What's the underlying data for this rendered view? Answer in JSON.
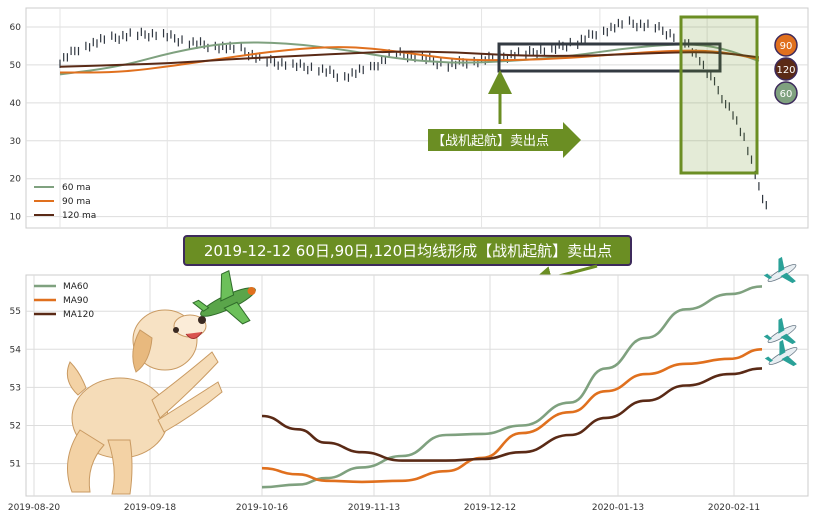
{
  "chart_data": [
    {
      "type": "line",
      "panel": "top",
      "title": "",
      "xlabel": "",
      "ylabel": "",
      "x_range": [
        "2019-08-20",
        "2020-02-28"
      ],
      "ylim": [
        7,
        65
      ],
      "y_ticks": [
        10,
        20,
        30,
        40,
        50,
        60
      ],
      "grid": true,
      "legend_position": "bottom-left",
      "series": [
        {
          "name": "60 ma",
          "color": "#7fa17f",
          "x": [
            "2019-08-20",
            "2019-09-05",
            "2019-09-20",
            "2019-10-05",
            "2019-10-20",
            "2019-11-05",
            "2019-11-20",
            "2019-12-05",
            "2019-12-20",
            "2020-01-05",
            "2020-01-20",
            "2020-02-05",
            "2020-02-15",
            "2020-02-25"
          ],
          "values": [
            47.5,
            49.5,
            53.5,
            56,
            55.8,
            54,
            51.5,
            50.4,
            51,
            52.3,
            54.4,
            55.7,
            54.5,
            51
          ]
        },
        {
          "name": "90 ma",
          "color": "#e0701e",
          "x": [
            "2019-08-20",
            "2019-09-05",
            "2019-09-20",
            "2019-10-05",
            "2019-10-20",
            "2019-11-05",
            "2019-11-20",
            "2019-12-05",
            "2019-12-20",
            "2020-01-05",
            "2020-01-20",
            "2020-02-05",
            "2020-02-15",
            "2020-02-25"
          ],
          "values": [
            48,
            48,
            49.8,
            52,
            54,
            55,
            53.5,
            51.3,
            51.2,
            51.8,
            53,
            53.9,
            53.5,
            51.5
          ]
        },
        {
          "name": "120 ma",
          "color": "#5a2a16",
          "x": [
            "2019-08-20",
            "2019-09-05",
            "2019-09-20",
            "2019-10-05",
            "2019-10-20",
            "2019-11-05",
            "2019-11-20",
            "2019-12-05",
            "2019-12-20",
            "2020-01-05",
            "2020-01-20",
            "2020-02-05",
            "2020-02-15",
            "2020-02-25"
          ],
          "values": [
            49.5,
            50,
            50.5,
            51.5,
            52.2,
            53,
            53.6,
            53.3,
            52.5,
            52.3,
            52.8,
            53.4,
            53.2,
            52
          ]
        }
      ],
      "price": {
        "x": [
          "2019-08-20",
          "2019-08-27",
          "2019-09-03",
          "2019-09-10",
          "2019-09-17",
          "2019-09-24",
          "2019-10-01",
          "2019-10-08",
          "2019-10-15",
          "2019-10-22",
          "2019-10-29",
          "2019-11-05",
          "2019-11-12",
          "2019-11-19",
          "2019-11-26",
          "2019-12-03",
          "2019-12-10",
          "2019-12-17",
          "2019-12-24",
          "2019-12-31",
          "2020-01-07",
          "2020-01-14",
          "2020-01-21",
          "2020-01-28",
          "2020-02-04",
          "2020-02-07",
          "2020-02-10",
          "2020-02-13",
          "2020-02-16",
          "2020-02-19",
          "2020-02-22",
          "2020-02-25",
          "2020-02-28"
        ],
        "values": [
          51,
          55,
          57,
          58,
          58,
          56,
          55,
          54,
          51,
          50,
          49,
          47,
          49,
          53,
          52,
          50,
          51,
          52,
          53,
          54,
          56,
          59,
          61,
          60,
          57,
          54,
          50,
          45,
          40,
          35,
          28,
          18,
          10
        ]
      },
      "signal": {
        "label": "【战机起航】卖出点",
        "date": "2019-12-12"
      }
    },
    {
      "type": "line",
      "panel": "bottom",
      "title": "2019-12-12 60日,90日,120日均线形成【战机起航】卖出点",
      "xlabel": "",
      "ylabel": "",
      "x_ticks": [
        "2019-08-20",
        "2019-09-18",
        "2019-10-16",
        "2019-11-13",
        "2019-12-12",
        "2020-01-13",
        "2020-02-11"
      ],
      "y_ticks": [
        51,
        52,
        53,
        54,
        55
      ],
      "ylim": [
        50.15,
        55.95
      ],
      "grid": true,
      "legend_position": "top-left",
      "series": [
        {
          "name": "MA60",
          "color": "#7fa17f",
          "x": [
            "2019-10-16",
            "2019-10-25",
            "2019-11-01",
            "2019-11-10",
            "2019-11-20",
            "2019-12-01",
            "2019-12-10",
            "2019-12-20",
            "2020-01-01",
            "2020-01-10",
            "2020-01-20",
            "2020-01-30",
            "2020-02-10",
            "2020-02-18"
          ],
          "values": [
            50.38,
            50.45,
            50.62,
            50.9,
            51.2,
            51.75,
            51.78,
            52.0,
            52.6,
            53.5,
            54.3,
            55.05,
            55.45,
            55.65
          ]
        },
        {
          "name": "MA90",
          "color": "#e0701e",
          "x": [
            "2019-10-16",
            "2019-10-25",
            "2019-11-01",
            "2019-11-10",
            "2019-11-20",
            "2019-12-01",
            "2019-12-10",
            "2019-12-20",
            "2020-01-01",
            "2020-01-10",
            "2020-01-20",
            "2020-01-30",
            "2020-02-10",
            "2020-02-18"
          ],
          "values": [
            50.88,
            50.72,
            50.55,
            50.52,
            50.55,
            50.8,
            51.15,
            51.8,
            52.35,
            52.9,
            53.35,
            53.62,
            53.75,
            54.0
          ]
        },
        {
          "name": "MA120",
          "color": "#5a2a16",
          "x": [
            "2019-10-16",
            "2019-10-25",
            "2019-11-01",
            "2019-11-10",
            "2019-11-20",
            "2019-12-01",
            "2019-12-10",
            "2019-12-20",
            "2020-01-01",
            "2020-01-10",
            "2020-01-20",
            "2020-01-30",
            "2020-02-10",
            "2020-02-18"
          ],
          "values": [
            52.25,
            51.9,
            51.55,
            51.3,
            51.08,
            51.08,
            51.12,
            51.3,
            51.75,
            52.2,
            52.65,
            53.05,
            53.35,
            53.5
          ]
        }
      ]
    }
  ],
  "badges": [
    {
      "label": "90",
      "color": "#e0701e"
    },
    {
      "label": "120",
      "color": "#5a2a16"
    },
    {
      "label": "60",
      "color": "#7fa17f"
    }
  ],
  "decorations": {
    "left_image": "puppy-with-plane-image",
    "right_icons": "airplane-icon"
  }
}
